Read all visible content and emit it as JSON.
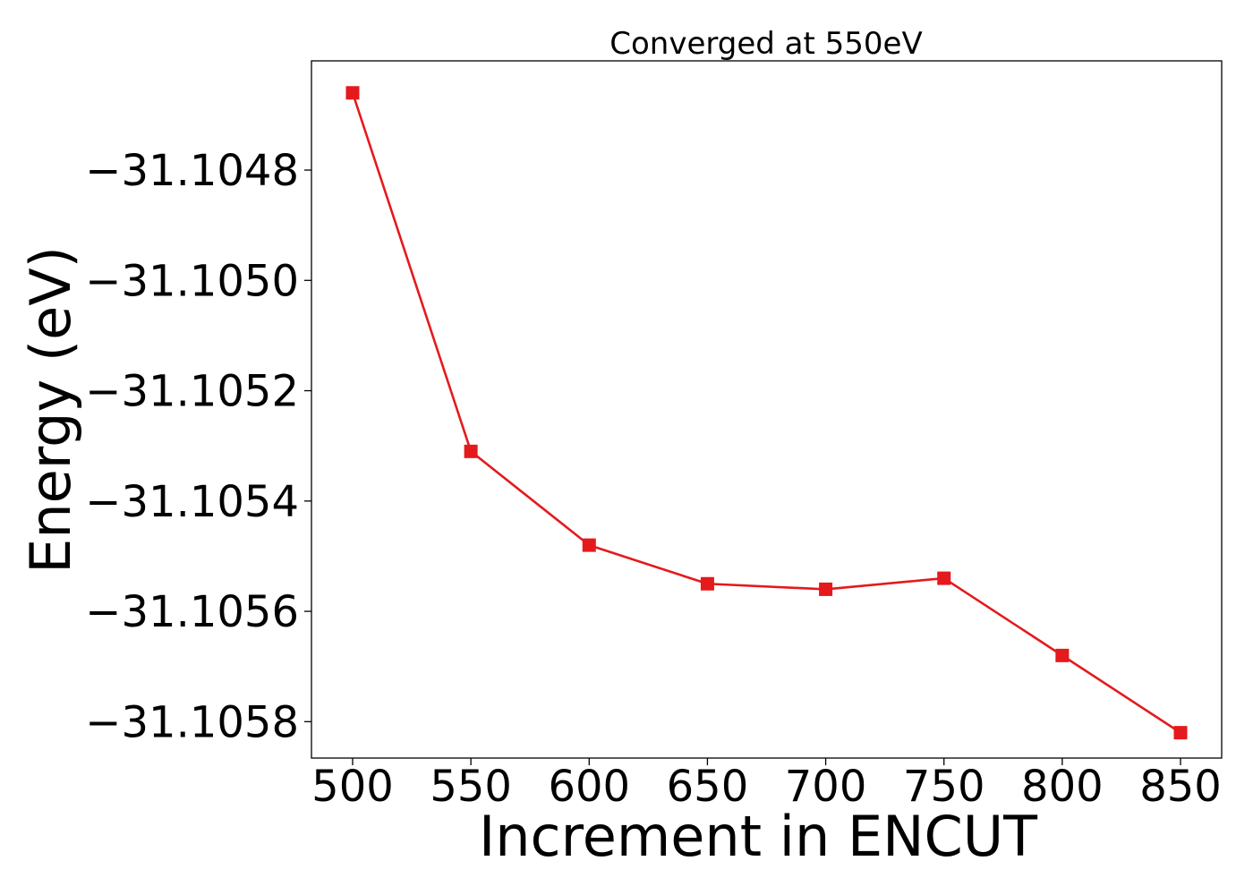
{
  "chart_data": {
    "type": "line",
    "title": "Converged at 550eV",
    "xlabel": "Increment in ENCUT",
    "ylabel": "Energy (eV)",
    "x": [
      500,
      550,
      600,
      650,
      700,
      750,
      800,
      850
    ],
    "series": [
      {
        "values": [
          -31.10466,
          -31.10531,
          -31.10548,
          -31.10555,
          -31.10556,
          -31.10554,
          -31.10568,
          -31.10582
        ],
        "color": "#e41a1c",
        "marker": "square"
      }
    ],
    "xticks": [
      500,
      550,
      600,
      650,
      700,
      750,
      800,
      850
    ],
    "xtick_labels": [
      "500",
      "550",
      "600",
      "650",
      "700",
      "750",
      "800",
      "850"
    ],
    "yticks": [
      -31.1048,
      -31.105,
      -31.1052,
      -31.1054,
      -31.1056,
      -31.1058
    ],
    "ytick_labels": [
      "−31.1048",
      "−31.1050",
      "−31.1052",
      "−31.1054",
      "−31.1056",
      "−31.1058"
    ],
    "xlim": [
      482.6,
      867.4
    ],
    "ylim": [
      -31.105866,
      -31.104602
    ],
    "grid": false,
    "legend": false
  }
}
